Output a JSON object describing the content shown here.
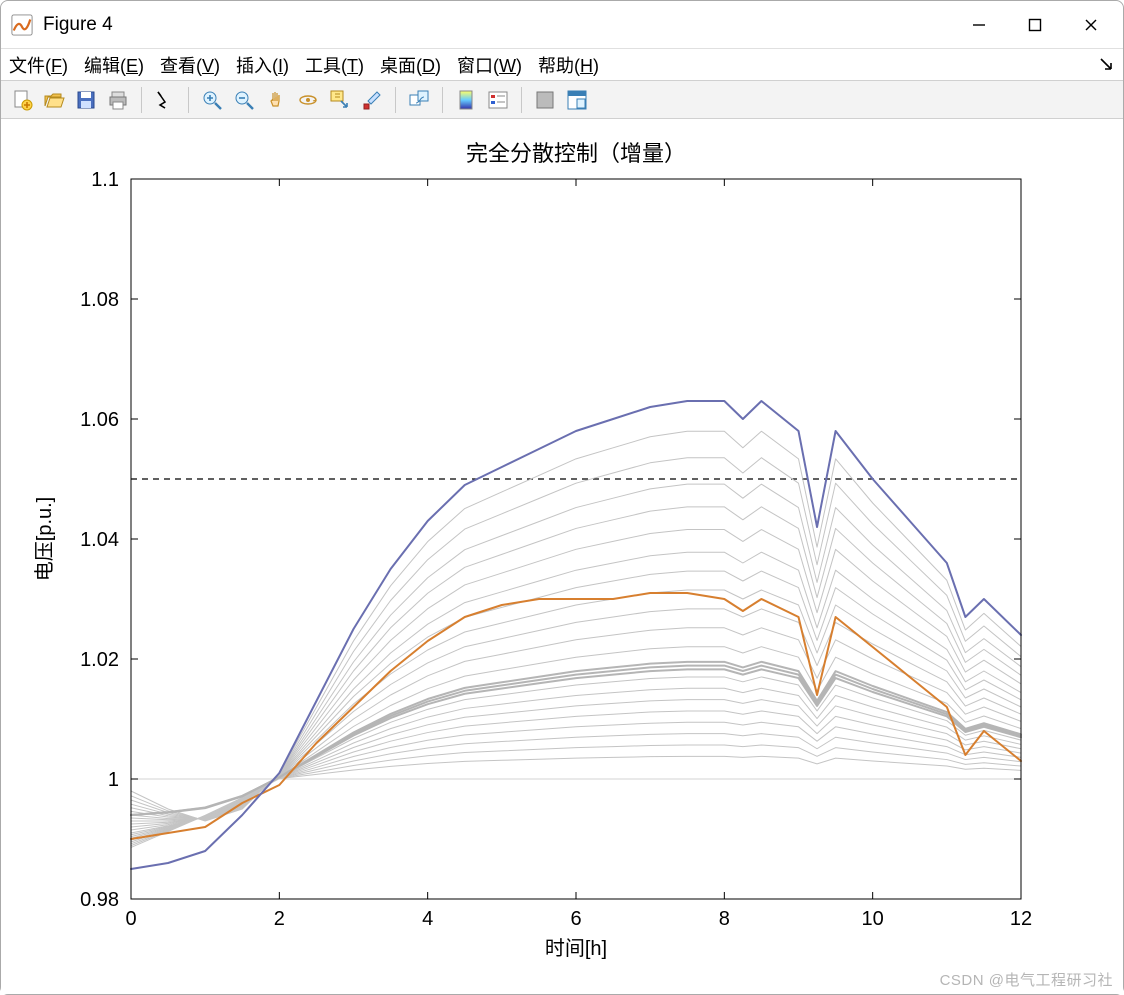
{
  "window": {
    "title": "Figure 4"
  },
  "menubar": {
    "items": [
      {
        "label": "文件",
        "mnemonic": "F"
      },
      {
        "label": "编辑",
        "mnemonic": "E"
      },
      {
        "label": "查看",
        "mnemonic": "V"
      },
      {
        "label": "插入",
        "mnemonic": "I"
      },
      {
        "label": "工具",
        "mnemonic": "T"
      },
      {
        "label": "桌面",
        "mnemonic": "D"
      },
      {
        "label": "窗口",
        "mnemonic": "W"
      },
      {
        "label": "帮助",
        "mnemonic": "H"
      }
    ]
  },
  "toolbar": {
    "buttons": [
      {
        "name": "new-figure-icon"
      },
      {
        "name": "open-icon"
      },
      {
        "name": "save-icon"
      },
      {
        "name": "print-icon"
      },
      {
        "sep": true
      },
      {
        "name": "edit-plot-icon"
      },
      {
        "sep": true
      },
      {
        "name": "zoom-in-icon"
      },
      {
        "name": "zoom-out-icon"
      },
      {
        "name": "pan-icon"
      },
      {
        "name": "rotate3d-icon"
      },
      {
        "name": "data-cursor-icon"
      },
      {
        "name": "brush-icon"
      },
      {
        "sep": true
      },
      {
        "name": "link-plot-icon"
      },
      {
        "sep": true
      },
      {
        "name": "colorbar-icon"
      },
      {
        "name": "legend-icon"
      },
      {
        "sep": true
      },
      {
        "name": "hide-tools-icon"
      },
      {
        "name": "dock-icon"
      }
    ]
  },
  "chart": {
    "type": "line",
    "title": "完全分散控制（增量）",
    "title_fontsize": 22,
    "xlabel": "时间[h]",
    "ylabel": "电压[p.u.]",
    "label_fontsize": 20,
    "tick_fontsize": 20,
    "xlim": [
      0,
      12
    ],
    "ylim": [
      0.98,
      1.1
    ],
    "xticks": [
      0,
      2,
      4,
      6,
      8,
      10,
      12
    ],
    "yticks": [
      0.98,
      1.0,
      1.02,
      1.04,
      1.06,
      1.08,
      1.1
    ],
    "yticklabels": [
      "0.98",
      "1",
      "1.02",
      "1.04",
      "1.06",
      "1.08",
      "1.1"
    ],
    "background_color": "#ffffff",
    "axis_color": "#000000",
    "tick_color": "#000000",
    "grey_line_color": "#c4c4c4",
    "grey_line_width": 1.0,
    "highlight_lines": {
      "purple": {
        "color": "#6a6fb0",
        "width": 2.0
      },
      "orange": {
        "color": "#d77f2f",
        "width": 2.0
      }
    },
    "reference_line": {
      "y": 1.05,
      "color": "#000000",
      "dash": "6,5",
      "width": 1.2
    },
    "x": [
      0,
      0.5,
      1,
      1.5,
      2,
      2.5,
      3,
      3.5,
      4,
      4.5,
      5,
      5.5,
      6,
      6.5,
      7,
      7.5,
      8,
      8.25,
      8.5,
      9,
      9.25,
      9.5,
      10,
      10.5,
      11,
      11.25,
      11.5,
      12
    ],
    "series": {
      "purple": [
        0.985,
        0.986,
        0.988,
        0.994,
        1.001,
        1.013,
        1.025,
        1.035,
        1.043,
        1.049,
        1.052,
        1.055,
        1.058,
        1.06,
        1.062,
        1.063,
        1.063,
        1.06,
        1.063,
        1.058,
        1.042,
        1.058,
        1.05,
        1.043,
        1.036,
        1.027,
        1.03,
        1.024
      ],
      "orange": [
        0.99,
        0.991,
        0.992,
        0.996,
        0.999,
        1.006,
        1.012,
        1.018,
        1.023,
        1.027,
        1.029,
        1.03,
        1.03,
        1.03,
        1.031,
        1.031,
        1.03,
        1.028,
        1.03,
        1.027,
        1.014,
        1.027,
        1.022,
        1.017,
        1.012,
        1.004,
        1.008,
        1.003
      ],
      "grey_scales": [
        1.0,
        0.92,
        0.85,
        0.78,
        0.72,
        0.66,
        0.6,
        0.55,
        0.5,
        0.45,
        0.4,
        0.35,
        0.3,
        0.27,
        0.24,
        0.21,
        0.18,
        0.15,
        0.12,
        0.09,
        0.06
      ]
    }
  },
  "watermark": "CSDN @电气工程研习社"
}
